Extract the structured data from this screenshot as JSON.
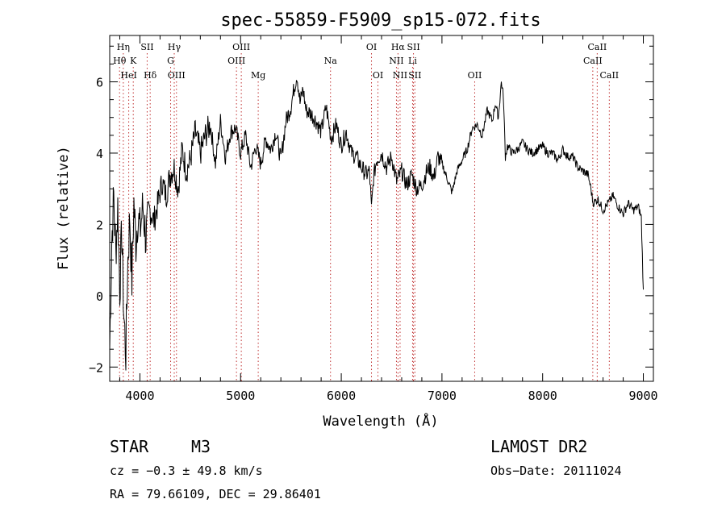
{
  "chart_data": {
    "type": "line",
    "title": "spec-55859-F5909_sp15-072.fits",
    "xlabel": "Wavelength (Å)",
    "ylabel": "Flux (relative)",
    "xlim": [
      3700,
      9100
    ],
    "ylim": [
      -2.4,
      7.3
    ],
    "grid": false,
    "xticks": [
      4000,
      5000,
      6000,
      7000,
      8000,
      9000
    ],
    "xtick_labels": [
      "4000",
      "5000",
      "6000",
      "7000",
      "8000",
      "9000"
    ],
    "yticks": [
      -2,
      0,
      2,
      4,
      6
    ],
    "ytick_labels": [
      "−2",
      "0",
      "2",
      "4",
      "6"
    ],
    "series": [
      {
        "x": [
          3700,
          3720,
          3740,
          3760,
          3780,
          3800,
          3820,
          3840,
          3860,
          3880,
          3900,
          3920,
          3940,
          3960,
          3980,
          4000,
          4030,
          4060,
          4100,
          4140,
          4180,
          4220,
          4260,
          4300,
          4340,
          4380,
          4420,
          4460,
          4500,
          4550,
          4600,
          4650,
          4700,
          4750,
          4800,
          4850,
          4900,
          4950,
          5000,
          5050,
          5100,
          5150,
          5200,
          5250,
          5300,
          5350,
          5400,
          5450,
          5500,
          5530,
          5560,
          5590,
          5620,
          5650,
          5700,
          5750,
          5800,
          5850,
          5900,
          5950,
          6000,
          6050,
          6100,
          6150,
          6200,
          6250,
          6280,
          6300,
          6320,
          6350,
          6400,
          6450,
          6500,
          6550,
          6600,
          6650,
          6700,
          6750,
          6800,
          6850,
          6880,
          6920,
          6960,
          7000,
          7050,
          7100,
          7150,
          7200,
          7250,
          7300,
          7350,
          7400,
          7450,
          7500,
          7530,
          7560,
          7590,
          7610,
          7630,
          7650,
          7700,
          7750,
          7800,
          7850,
          7900,
          7950,
          8000,
          8050,
          8100,
          8150,
          8200,
          8250,
          8300,
          8350,
          8400,
          8450,
          8480,
          8500,
          8550,
          8600,
          8650,
          8700,
          8750,
          8800,
          8850,
          8900,
          8950,
          8980,
          9000
        ],
        "y": [
          -1.5,
          1.5,
          2.8,
          1.2,
          2.5,
          0.2,
          1.8,
          -0.5,
          -1.6,
          1.0,
          2.2,
          0.4,
          2.6,
          1.5,
          2.3,
          1.8,
          2.5,
          1.6,
          2.4,
          2.1,
          2.6,
          3.2,
          2.8,
          3.4,
          3.6,
          3.0,
          4.1,
          3.5,
          3.8,
          4.6,
          4.0,
          4.5,
          4.8,
          3.7,
          4.9,
          3.9,
          4.6,
          4.7,
          4.0,
          4.5,
          3.6,
          4.2,
          3.7,
          4.4,
          4.1,
          4.6,
          3.8,
          4.9,
          5.3,
          5.8,
          6.2,
          5.4,
          5.8,
          5.2,
          5.1,
          4.9,
          4.6,
          5.3,
          4.4,
          4.8,
          4.2,
          4.6,
          4.0,
          3.9,
          3.6,
          3.4,
          3.5,
          2.4,
          3.3,
          3.8,
          4.0,
          3.6,
          3.9,
          3.2,
          3.5,
          3.1,
          3.4,
          3.0,
          3.1,
          3.5,
          3.6,
          3.3,
          3.9,
          3.7,
          3.3,
          2.9,
          3.5,
          3.8,
          4.1,
          4.7,
          4.8,
          4.5,
          5.2,
          4.9,
          5.4,
          5.0,
          6.0,
          5.6,
          3.9,
          4.2,
          4.0,
          4.1,
          4.3,
          4.1,
          4.0,
          4.1,
          4.2,
          4.0,
          4.0,
          3.8,
          4.1,
          3.9,
          3.9,
          3.6,
          3.5,
          3.4,
          3.0,
          2.6,
          2.7,
          2.4,
          2.6,
          2.8,
          2.5,
          2.3,
          2.6,
          2.4,
          2.5,
          2.2,
          0.1
        ]
      }
    ],
    "line_labels": [
      {
        "text": "Hη",
        "x": 3835,
        "row": 1
      },
      {
        "text": "Hθ",
        "x": 3798,
        "row": 2
      },
      {
        "text": "HeI",
        "x": 3889,
        "row": 3
      },
      {
        "text": "K",
        "x": 3934,
        "row": 2
      },
      {
        "text": "SII",
        "x": 4072,
        "row": 1
      },
      {
        "text": "Hδ",
        "x": 4102,
        "row": 3
      },
      {
        "text": "Hγ",
        "x": 4341,
        "row": 1
      },
      {
        "text": "G",
        "x": 4305,
        "row": 2
      },
      {
        "text": "OIII",
        "x": 4363,
        "row": 3
      },
      {
        "text": "OIII",
        "x": 5007,
        "row": 1
      },
      {
        "text": "OIII",
        "x": 4959,
        "row": 2
      },
      {
        "text": "Mg",
        "x": 5175,
        "row": 3
      },
      {
        "text": "Na",
        "x": 5893,
        "row": 2
      },
      {
        "text": "OI",
        "x": 6300,
        "row": 1
      },
      {
        "text": "OI",
        "x": 6364,
        "row": 3
      },
      {
        "text": "Hα",
        "x": 6563,
        "row": 1
      },
      {
        "text": "SII",
        "x": 6717,
        "row": 1
      },
      {
        "text": "NII",
        "x": 6548,
        "row": 2
      },
      {
        "text": "Li",
        "x": 6708,
        "row": 2
      },
      {
        "text": "NII",
        "x": 6584,
        "row": 3
      },
      {
        "text": "SII",
        "x": 6731,
        "row": 3
      },
      {
        "text": "OII",
        "x": 7325,
        "row": 3
      },
      {
        "text": "CaII",
        "x": 8542,
        "row": 1
      },
      {
        "text": "CaII",
        "x": 8498,
        "row": 2
      },
      {
        "text": "CaII",
        "x": 8662,
        "row": 3
      }
    ]
  },
  "info": {
    "object_class": "STAR",
    "subclass": "M3",
    "survey": "LAMOST DR2",
    "cz": "cz = −0.3 ± 49.8 km/s",
    "obs_date": "Obs−Date: 20111024",
    "coords": "RA =  79.66109, DEC =  29.86401"
  }
}
